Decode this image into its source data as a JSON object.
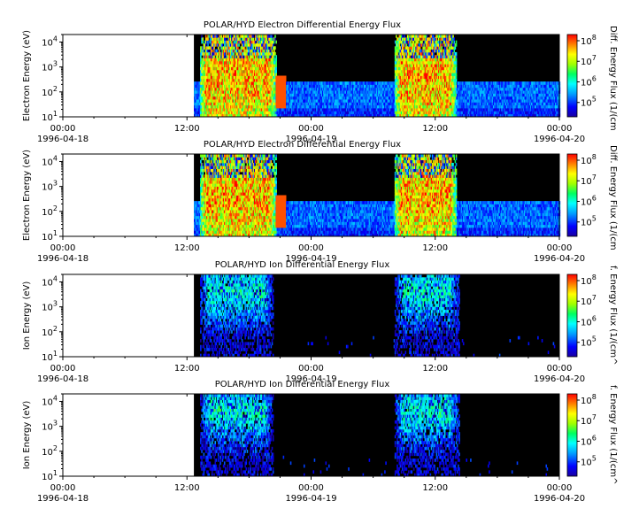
{
  "figure": {
    "panels": [
      {
        "title": "POLAR/HYD  Electron Differential Energy Flux",
        "ylabel": "Electron Energy (eV)",
        "cbar_label": "Diff. Energy Flux (1/(cm",
        "species": "electron"
      },
      {
        "title": "POLAR/HYD  Electron Differential Energy Flux",
        "ylabel": "Electron Energy (eV)",
        "cbar_label": "Diff. Energy Flux (1/(cm",
        "species": "electron"
      },
      {
        "title": "POLAR/HYD  Ion Differential Energy Flux",
        "ylabel": "Ion Energy (eV)",
        "cbar_label": "f. Energy Flux (1/(cm^",
        "species": "ion"
      },
      {
        "title": "POLAR/HYD  Ion Differential Energy Flux",
        "ylabel": "Ion Energy (eV)",
        "cbar_label": "f. Energy Flux (1/(cm^",
        "species": "ion"
      }
    ],
    "x_ticks": [
      {
        "time": "00:00",
        "date": "1996-04-18"
      },
      {
        "time": "12:00",
        "date": ""
      },
      {
        "time": "00:00",
        "date": "1996-04-19"
      },
      {
        "time": "12:00",
        "date": ""
      },
      {
        "time": "00:00",
        "date": "1996-04-20"
      }
    ],
    "y_ticks": [
      "10^4",
      "10^3",
      "10^2",
      "10^1"
    ],
    "cbar_ticks": [
      "10^8",
      "10^7",
      "10^6",
      "10^5"
    ]
  },
  "chart_data": [
    {
      "type": "heatmap",
      "title": "POLAR/HYD  Electron Differential Energy Flux",
      "ylabel": "Electron Energy (eV)",
      "x_range": [
        "1996-04-18 00:00",
        "1996-04-20 00:00"
      ],
      "data_start": "1996-04-18 12:40",
      "y_range_eV": [
        10,
        20000
      ],
      "y_scale": "log",
      "colorbar": {
        "label": "Diff. Energy Flux (1/(cm",
        "range": [
          20000,
          200000000
        ],
        "scale": "log",
        "colormap": "rainbow"
      },
      "features": "Broadband high flux (1e6-1e8) from ~13:00 to ~20:30 on 04-18 and from ~08:00 to ~14:00 on 04-19; low-energy flux ~1e5-1e6 below ~300 eV elsewhere; no data before ~12:40 on 04-18"
    },
    {
      "type": "heatmap",
      "title": "POLAR/HYD  Electron Differential Energy Flux",
      "ylabel": "Electron Energy (eV)",
      "x_range": [
        "1996-04-18 00:00",
        "1996-04-20 00:00"
      ],
      "data_start": "1996-04-18 12:40",
      "y_range_eV": [
        10,
        20000
      ],
      "y_scale": "log",
      "colorbar": {
        "label": "Diff. Energy Flux (1/(cm",
        "range": [
          20000,
          200000000
        ],
        "scale": "log",
        "colormap": "rainbow"
      },
      "features": "Same as panel 1"
    },
    {
      "type": "heatmap",
      "title": "POLAR/HYD  Ion Differential Energy Flux",
      "ylabel": "Ion Energy (eV)",
      "x_range": [
        "1996-04-18 00:00",
        "1996-04-20 00:00"
      ],
      "data_start": "1996-04-18 12:40",
      "y_range_eV": [
        10,
        20000
      ],
      "y_scale": "log",
      "colorbar": {
        "label": "f. Energy Flux (1/(cm^",
        "range": [
          20000,
          200000000
        ],
        "scale": "log",
        "colormap": "rainbow"
      },
      "features": "Ion flux ~1e5-1e6 at keV energies during ~13:00-20:00 on 04-18 and ~08:00-14:00 on 04-19; mostly below threshold (black) elsewhere"
    },
    {
      "type": "heatmap",
      "title": "POLAR/HYD  Ion Differential Energy Flux",
      "ylabel": "Ion Energy (eV)",
      "x_range": [
        "1996-04-18 00:00",
        "1996-04-20 00:00"
      ],
      "data_start": "1996-04-18 12:40",
      "y_range_eV": [
        10,
        20000
      ],
      "y_scale": "log",
      "colorbar": {
        "label": "f. Energy Flux (1/(cm^",
        "range": [
          20000,
          200000000
        ],
        "scale": "log",
        "colormap": "rainbow"
      },
      "features": "Same as panel 3"
    }
  ]
}
